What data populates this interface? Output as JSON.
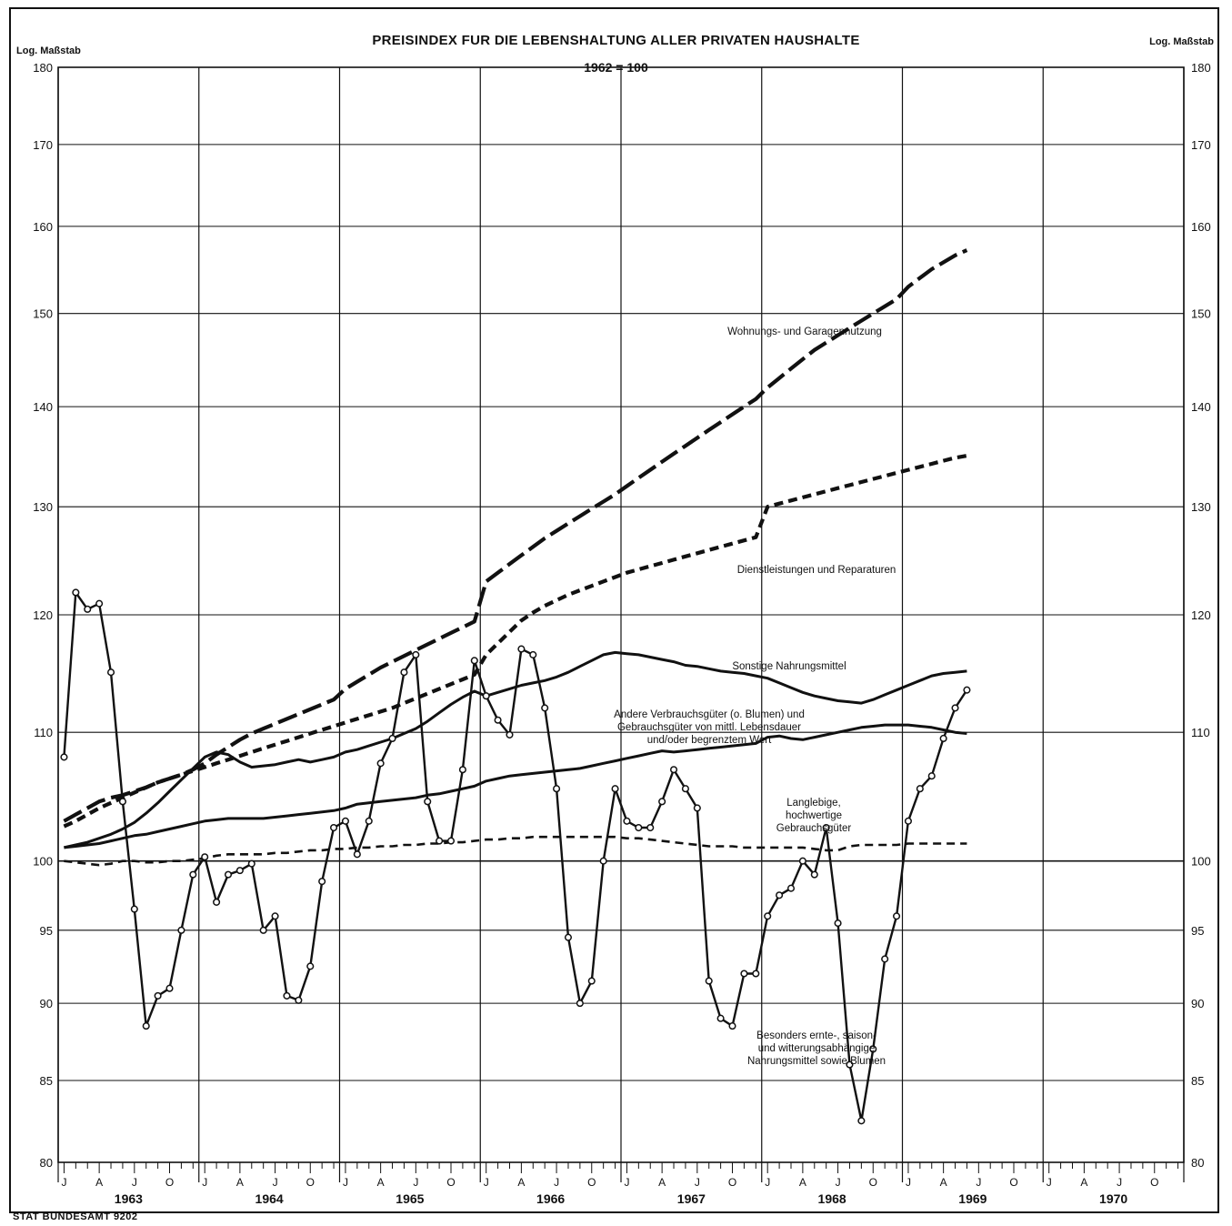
{
  "title": "PREISINDEX FUR DIE LEBENSHALTUNG ALLER PRIVATEN HAUSHALTE",
  "base_label": "1962 = 100",
  "scale_label_left": "Log. Maßstab",
  "scale_label_right": "Log. Maßstab",
  "source": "STAT BUNDESAMT 9202",
  "chart_data": {
    "type": "line",
    "y_scale": "log",
    "ylim": [
      80,
      180
    ],
    "yticks": [
      80,
      85,
      90,
      95,
      100,
      110,
      120,
      130,
      140,
      150,
      160,
      170,
      180
    ],
    "grid": true,
    "years": [
      "1963",
      "1964",
      "1965",
      "1966",
      "1967",
      "1968",
      "1969",
      "1970"
    ],
    "month_labels": [
      "J",
      "A",
      "J",
      "O"
    ],
    "series": [
      {
        "name": "Wohnungs- und Garagennutzung",
        "style": "long-dash",
        "values": [
          103.0,
          103.5,
          104.0,
          104.5,
          104.8,
          105.0,
          105.3,
          105.6,
          106.0,
          106.3,
          106.6,
          107.0,
          107.5,
          108.2,
          108.8,
          109.4,
          109.9,
          110.3,
          110.7,
          111.1,
          111.5,
          111.9,
          112.3,
          112.7,
          113.6,
          114.2,
          114.8,
          115.4,
          115.9,
          116.4,
          116.9,
          117.4,
          117.9,
          118.4,
          118.9,
          119.4,
          123.0,
          123.8,
          124.6,
          125.4,
          126.2,
          127.0,
          127.7,
          128.4,
          129.1,
          129.8,
          130.5,
          131.2,
          132.0,
          132.8,
          133.6,
          134.4,
          135.2,
          136.0,
          136.8,
          137.6,
          138.4,
          139.2,
          140.0,
          140.8,
          142.0,
          143.0,
          144.0,
          145.0,
          146.0,
          146.8,
          147.6,
          148.4,
          149.2,
          150.0,
          150.8,
          151.6,
          153.0,
          154.0,
          155.0,
          155.8,
          156.6,
          157.2
        ]
      },
      {
        "name": "Dienstleistungen und Reparaturen",
        "style": "short-dash",
        "values": [
          102.6,
          103.0,
          103.5,
          104.0,
          104.4,
          104.8,
          105.2,
          105.6,
          106.0,
          106.3,
          106.6,
          106.9,
          107.2,
          107.5,
          107.8,
          108.1,
          108.4,
          108.7,
          109.0,
          109.3,
          109.6,
          109.9,
          110.2,
          110.5,
          110.8,
          111.1,
          111.4,
          111.7,
          112.0,
          112.4,
          112.8,
          113.2,
          113.6,
          114.0,
          114.4,
          114.8,
          116.5,
          117.5,
          118.5,
          119.5,
          120.2,
          120.8,
          121.3,
          121.8,
          122.2,
          122.6,
          123.0,
          123.4,
          123.8,
          124.1,
          124.4,
          124.7,
          125.0,
          125.3,
          125.6,
          125.9,
          126.2,
          126.5,
          126.8,
          127.1,
          130.0,
          130.3,
          130.6,
          130.9,
          131.2,
          131.5,
          131.8,
          132.1,
          132.4,
          132.7,
          133.0,
          133.3,
          133.6,
          133.9,
          134.2,
          134.5,
          134.8,
          135.0
        ]
      },
      {
        "name": "Sonstige Nahrungsmittel",
        "style": "solid",
        "values": [
          101.0,
          101.2,
          101.4,
          101.7,
          102.0,
          102.4,
          102.9,
          103.6,
          104.4,
          105.3,
          106.2,
          107.1,
          108.0,
          108.4,
          108.2,
          107.6,
          107.2,
          107.3,
          107.4,
          107.6,
          107.8,
          107.6,
          107.8,
          108.0,
          108.4,
          108.6,
          108.9,
          109.2,
          109.5,
          109.9,
          110.3,
          110.9,
          111.6,
          112.3,
          112.9,
          113.4,
          113.0,
          113.3,
          113.6,
          113.9,
          114.1,
          114.3,
          114.6,
          115.0,
          115.5,
          116.0,
          116.5,
          116.7,
          116.6,
          116.5,
          116.3,
          116.1,
          115.9,
          115.6,
          115.5,
          115.3,
          115.1,
          115.0,
          114.9,
          114.7,
          114.5,
          114.1,
          113.7,
          113.3,
          113.0,
          112.8,
          112.6,
          112.5,
          112.4,
          112.7,
          113.1,
          113.5,
          113.9,
          114.3,
          114.7,
          114.9,
          115.0,
          115.1
        ]
      },
      {
        "name": "Andere Verbrauchsgüter (o. Blumen) und Gebrauchsgüter von mittl. Lebensdauer und/oder begrenztem Wert",
        "style": "solid",
        "values": [
          101.0,
          101.1,
          101.2,
          101.3,
          101.5,
          101.7,
          101.9,
          102.0,
          102.2,
          102.4,
          102.6,
          102.8,
          103.0,
          103.1,
          103.2,
          103.2,
          103.2,
          103.2,
          103.3,
          103.4,
          103.5,
          103.6,
          103.7,
          103.8,
          104.0,
          104.3,
          104.4,
          104.5,
          104.6,
          104.7,
          104.8,
          105.0,
          105.1,
          105.3,
          105.5,
          105.7,
          106.1,
          106.3,
          106.5,
          106.6,
          106.7,
          106.8,
          106.9,
          107.0,
          107.1,
          107.3,
          107.5,
          107.7,
          107.9,
          108.1,
          108.3,
          108.5,
          108.4,
          108.5,
          108.6,
          108.7,
          108.8,
          108.9,
          109.0,
          109.1,
          109.6,
          109.7,
          109.5,
          109.4,
          109.6,
          109.8,
          110.0,
          110.2,
          110.4,
          110.5,
          110.6,
          110.6,
          110.6,
          110.5,
          110.4,
          110.2,
          110.0,
          109.9
        ]
      },
      {
        "name": "Langlebige, hochwertige Gebrauchsgüter",
        "style": "dash",
        "values": [
          100.0,
          99.9,
          99.8,
          99.7,
          99.8,
          100.0,
          100.0,
          99.9,
          99.9,
          100.0,
          100.0,
          100.1,
          100.2,
          100.4,
          100.5,
          100.5,
          100.5,
          100.5,
          100.6,
          100.6,
          100.7,
          100.8,
          100.8,
          100.9,
          100.9,
          101.0,
          101.0,
          101.1,
          101.1,
          101.2,
          101.2,
          101.3,
          101.3,
          101.4,
          101.4,
          101.5,
          101.6,
          101.6,
          101.7,
          101.7,
          101.8,
          101.8,
          101.8,
          101.8,
          101.8,
          101.8,
          101.8,
          101.8,
          101.7,
          101.7,
          101.6,
          101.5,
          101.4,
          101.3,
          101.2,
          101.1,
          101.1,
          101.1,
          101.0,
          101.0,
          101.0,
          101.0,
          101.0,
          101.0,
          100.9,
          100.8,
          100.8,
          101.1,
          101.2,
          101.2,
          101.2,
          101.2,
          101.3,
          101.3,
          101.3,
          101.3,
          101.3,
          101.3
        ]
      },
      {
        "name": "Besonders ernte-, saison- und witterungsabhängige Nahrungsmittel sowie Blumen",
        "style": "solid-markers",
        "values": [
          108.0,
          122.0,
          120.5,
          121.0,
          115.0,
          104.5,
          96.5,
          88.5,
          90.5,
          91.0,
          95.0,
          99.0,
          100.3,
          97.0,
          99.0,
          99.3,
          99.8,
          95.0,
          96.0,
          90.5,
          90.2,
          92.5,
          98.5,
          102.5,
          103.0,
          100.5,
          103.0,
          107.5,
          109.5,
          115.0,
          116.5,
          104.5,
          101.5,
          101.5,
          107.0,
          116.0,
          113.0,
          111.0,
          109.8,
          117.0,
          116.5,
          112.0,
          105.5,
          94.5,
          90.0,
          91.5,
          100.0,
          105.5,
          103.0,
          102.5,
          102.5,
          104.5,
          107.0,
          105.5,
          104.0,
          91.5,
          89.0,
          88.5,
          92.0,
          92.0,
          96.0,
          97.5,
          98.0,
          100.0,
          99.0,
          102.5,
          95.5,
          86.0,
          82.5,
          87.0,
          93.0,
          96.0,
          103.0,
          105.5,
          106.5,
          109.5,
          112.0,
          113.5
        ]
      }
    ],
    "annotations": [
      "Wohnungs- und Garagennutzung",
      "Dienstleistungen und Reparaturen",
      "Sonstige Nahrungsmittel",
      "Andere Verbrauchsgüter (o. Blumen) und",
      "Gebrauchsgüter von mittl. Lebensdauer",
      "und/oder begrenztem Wert",
      "Langlebige,",
      "hochwertige",
      "Gebrauchsgüter",
      "Besonders ernte-, saison-",
      "und witterungsabhängige",
      "Nahrungsmittel sowie Blumen"
    ]
  }
}
